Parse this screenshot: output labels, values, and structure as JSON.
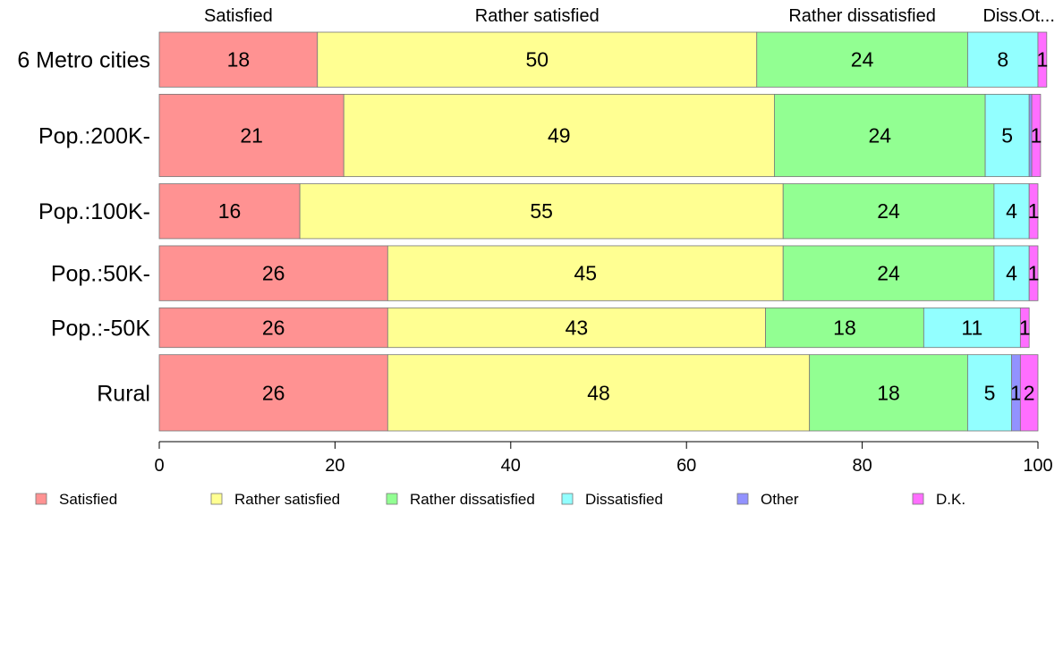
{
  "chart_data": {
    "type": "bar",
    "orientation": "horizontal",
    "stacked": true,
    "categories": [
      "6 Metro cities",
      "Pop.:200K-",
      "Pop.:100K-",
      "Pop.:50K-",
      "Pop.:-50K",
      "Rural"
    ],
    "series": [
      {
        "name": "Satisfied",
        "color": "#FF9292",
        "values": [
          18,
          21,
          16,
          26,
          26,
          26
        ]
      },
      {
        "name": "Rather satisfied",
        "color": "#FFFF92",
        "values": [
          50,
          49,
          55,
          45,
          43,
          48
        ]
      },
      {
        "name": "Rather dissatisfied",
        "color": "#92FF92",
        "values": [
          24,
          24,
          24,
          24,
          18,
          18
        ]
      },
      {
        "name": "Dissatisfied",
        "color": "#92FFFF",
        "values": [
          8,
          5,
          4,
          4,
          11,
          5
        ]
      },
      {
        "name": "Other",
        "color": "#9292FF",
        "values": [
          0,
          0.3,
          0,
          0,
          0,
          1
        ]
      },
      {
        "name": "D.K.",
        "color": "#FF6EFF",
        "values": [
          1,
          1,
          1,
          1,
          1,
          2
        ]
      }
    ],
    "top_labels": [
      "Satisfied",
      "Rather satisfied",
      "Rather dissatisfied",
      "Diss.",
      "Ot..."
    ],
    "xlim": [
      0,
      100
    ],
    "xticks": [
      0,
      20,
      40,
      60,
      80,
      100
    ],
    "relative_bar_widths": [
      0.09,
      0.135,
      0.09,
      0.09,
      0.065,
      0.125
    ],
    "legend_position": "bottom",
    "grid": false
  }
}
